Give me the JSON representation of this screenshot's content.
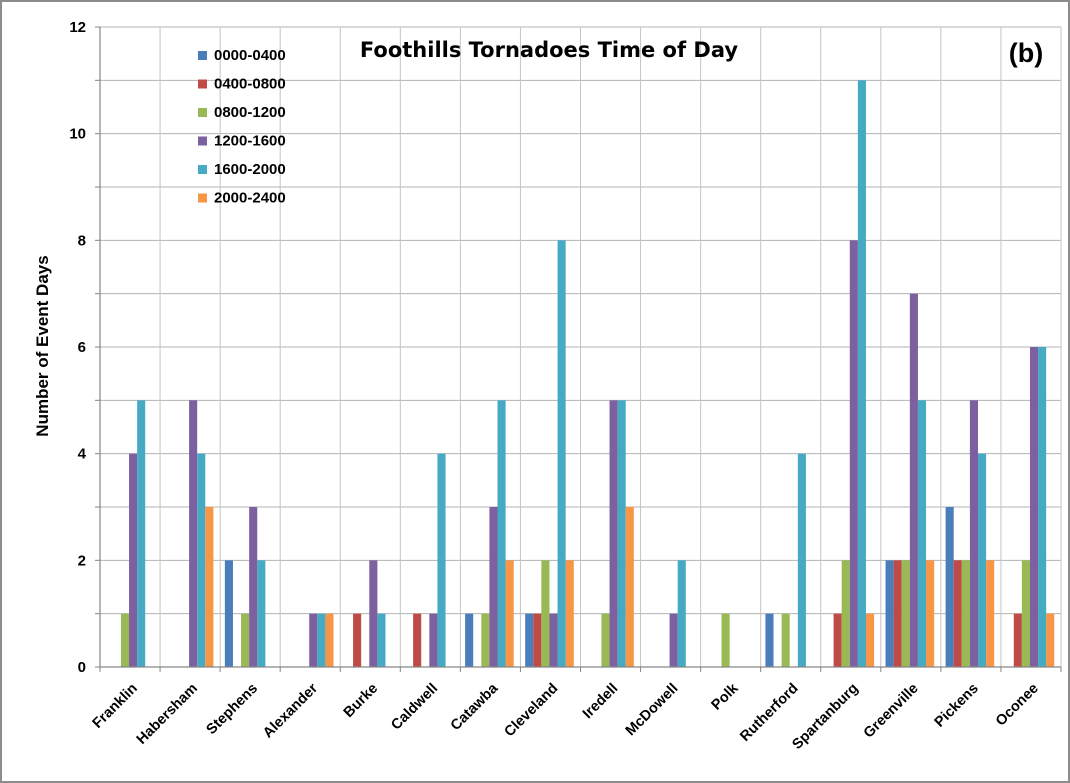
{
  "chart_data": {
    "type": "bar",
    "title": "Foothills Tornadoes Time of Day",
    "panel_tag": "(b)",
    "ylabel": "Number of Event Days",
    "xlabel": "",
    "ylim": [
      0,
      12
    ],
    "y_ticks": [
      "0",
      "2",
      "4",
      "6",
      "8",
      "10",
      "12"
    ],
    "y_tick_values": [
      0,
      2,
      4,
      6,
      8,
      10,
      12
    ],
    "grid": true,
    "legend_position": "top-left",
    "categories": [
      "Franklin",
      "Habersham",
      "Stephens",
      "Alexander",
      "Burke",
      "Caldwell",
      "Catawba",
      "Cleveland",
      "Iredell",
      "McDowell",
      "Polk",
      "Rutherford",
      "Spartanburg",
      "Greenville",
      "Pickens",
      "Oconee"
    ],
    "series": [
      {
        "name": "0000-0400",
        "color": "#4a7ebb",
        "values": [
          0,
          0,
          2,
          0,
          0,
          0,
          1,
          1,
          0,
          0,
          0,
          1,
          0,
          2,
          3,
          0
        ]
      },
      {
        "name": "0400-0800",
        "color": "#be4b48",
        "values": [
          0,
          0,
          0,
          0,
          1,
          1,
          0,
          1,
          0,
          0,
          0,
          0,
          1,
          2,
          2,
          1
        ]
      },
      {
        "name": "0800-1200",
        "color": "#98b954",
        "values": [
          1,
          0,
          1,
          0,
          0,
          0,
          1,
          2,
          1,
          0,
          1,
          1,
          2,
          2,
          2,
          2
        ]
      },
      {
        "name": "1200-1600",
        "color": "#7d60a0",
        "values": [
          4,
          5,
          3,
          1,
          2,
          1,
          3,
          1,
          5,
          1,
          0,
          0,
          8,
          7,
          5,
          6
        ]
      },
      {
        "name": "1600-2000",
        "color": "#46aac5",
        "values": [
          5,
          4,
          2,
          1,
          1,
          4,
          5,
          8,
          5,
          2,
          0,
          4,
          11,
          5,
          4,
          6
        ]
      },
      {
        "name": "2000-2400",
        "color": "#f79646",
        "values": [
          0,
          3,
          0,
          1,
          0,
          0,
          2,
          2,
          3,
          0,
          0,
          0,
          1,
          2,
          2,
          1
        ]
      }
    ]
  }
}
